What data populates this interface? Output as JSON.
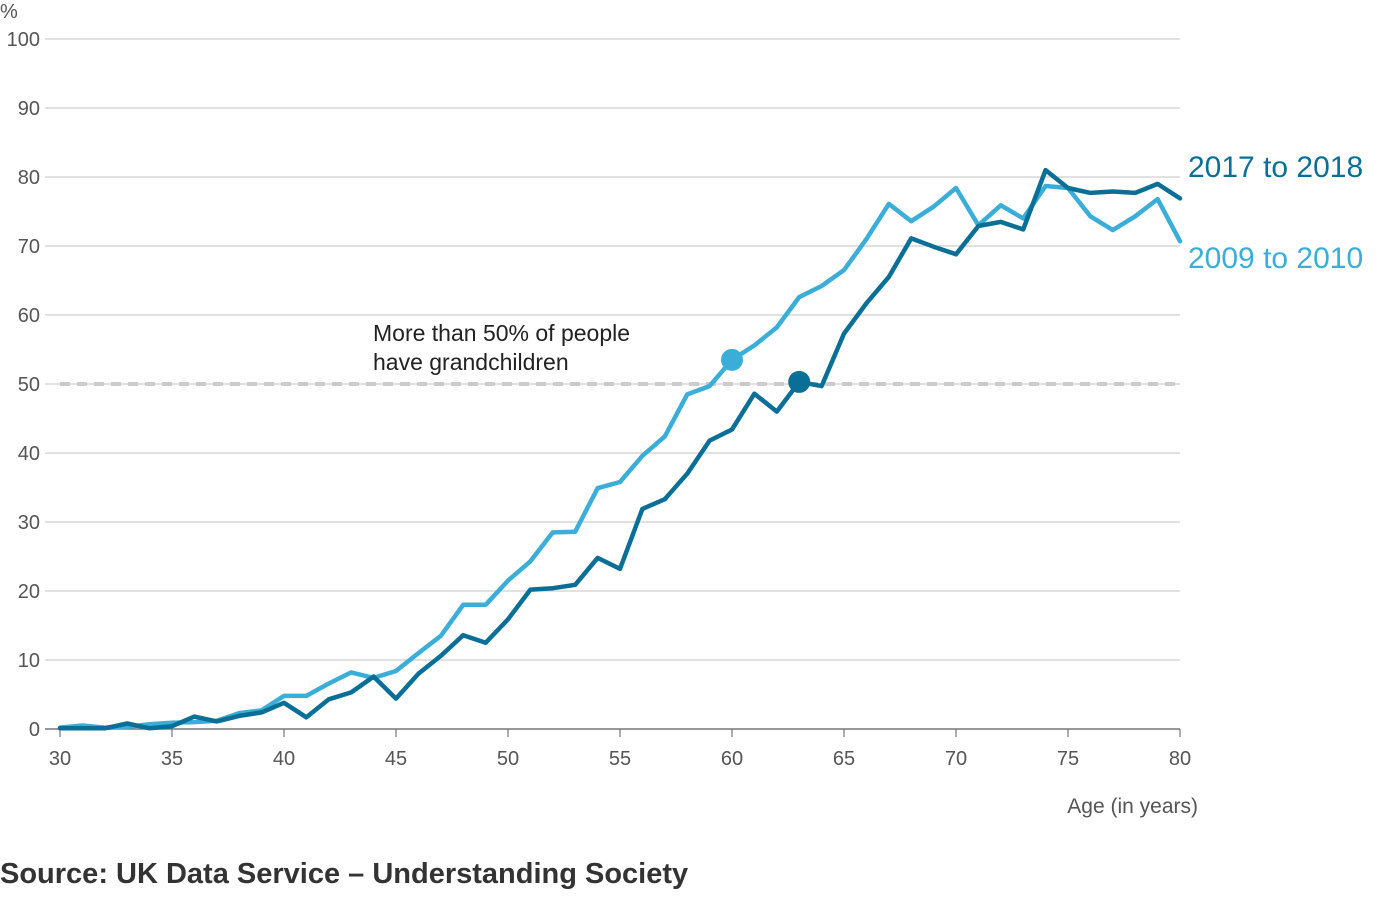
{
  "chart_data": {
    "type": "line",
    "ylabel": "%",
    "xlabel": "Age (in years)",
    "xlim": [
      30,
      80
    ],
    "ylim": [
      0,
      100
    ],
    "x_ticks": [
      30,
      35,
      40,
      45,
      50,
      55,
      60,
      65,
      70,
      75,
      80
    ],
    "y_ticks": [
      0,
      10,
      20,
      30,
      40,
      50,
      60,
      70,
      80,
      90,
      100
    ],
    "grid": true,
    "x": [
      30,
      31,
      32,
      33,
      34,
      35,
      36,
      37,
      38,
      39,
      40,
      41,
      42,
      43,
      44,
      45,
      46,
      47,
      48,
      49,
      50,
      51,
      52,
      53,
      54,
      55,
      56,
      57,
      58,
      59,
      60,
      61,
      62,
      63,
      64,
      65,
      66,
      67,
      68,
      69,
      70,
      71,
      72,
      73,
      74,
      75,
      76,
      77,
      78,
      79,
      80
    ],
    "series": [
      {
        "name": "2009 to 2010",
        "color": "#3aaed8",
        "values": [
          0.2,
          0.5,
          0.2,
          0.3,
          0.7,
          0.9,
          1.0,
          1.2,
          2.3,
          2.7,
          4.8,
          4.8,
          6.6,
          8.2,
          7.4,
          8.4,
          11.0,
          13.5,
          18.0,
          18.0,
          21.5,
          24.3,
          28.5,
          28.6,
          34.9,
          35.8,
          39.6,
          42.4,
          48.5,
          49.7,
          53.5,
          55.6,
          58.2,
          62.6,
          64.2,
          66.5,
          71.0,
          76.1,
          73.6,
          75.7,
          78.4,
          73.0,
          75.9,
          74.0,
          78.7,
          78.4,
          74.3,
          72.3,
          74.3,
          76.8,
          70.7
        ],
        "highlight": {
          "x": 60,
          "y": 53.5
        }
      },
      {
        "name": "2017 to 2018",
        "color": "#0a6f96",
        "values": [
          0.1,
          0.1,
          0.1,
          0.8,
          0.1,
          0.4,
          1.8,
          1.1,
          1.9,
          2.4,
          3.8,
          1.7,
          4.3,
          5.3,
          7.6,
          4.4,
          8.0,
          10.6,
          13.6,
          12.5,
          15.9,
          20.2,
          20.4,
          20.9,
          24.8,
          23.2,
          31.9,
          33.3,
          37.0,
          41.8,
          43.4,
          48.6,
          46.0,
          50.3,
          49.7,
          57.3,
          61.7,
          65.5,
          71.1,
          69.9,
          68.8,
          72.9,
          73.5,
          72.4,
          81.0,
          78.4,
          77.7,
          77.9,
          77.7,
          79.0,
          76.9
        ],
        "highlight": {
          "x": 63,
          "y": 50.3
        }
      }
    ],
    "reference_line": {
      "y": 50,
      "color": "#cccccc"
    },
    "annotation": {
      "lines": [
        "More than 50% of people",
        "have grandchildren"
      ]
    }
  },
  "source": "Source: UK Data Service – Understanding Society"
}
